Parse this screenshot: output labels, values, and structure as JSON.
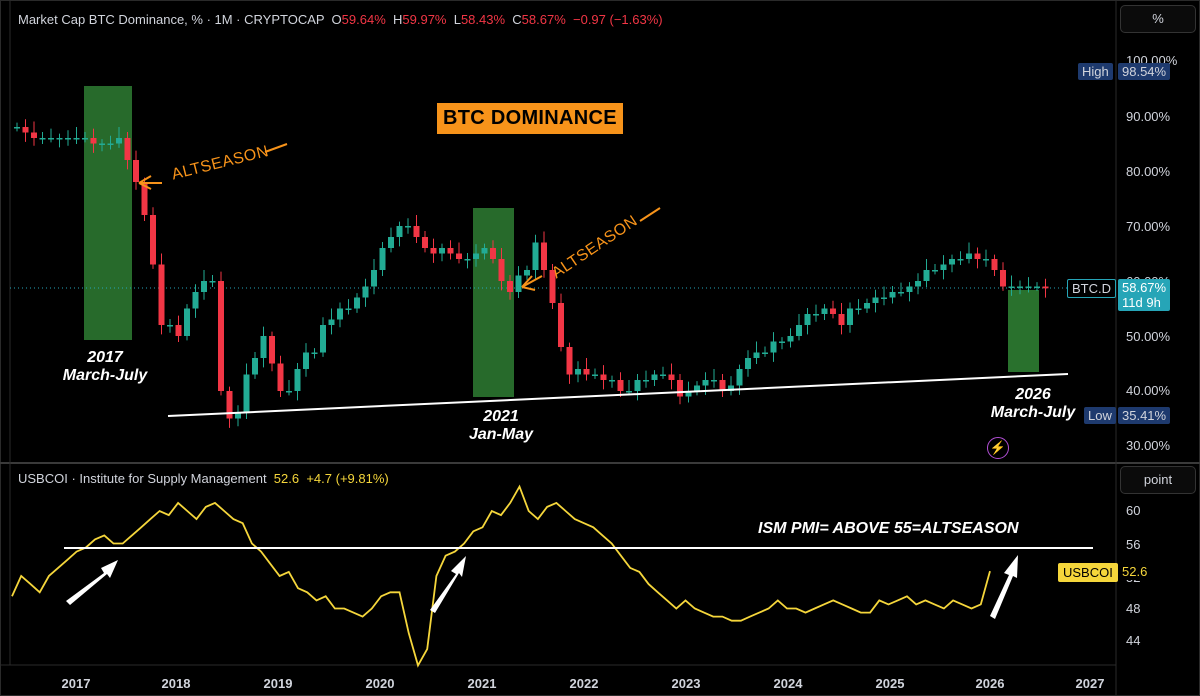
{
  "main_legend": {
    "title": "Market Cap BTC Dominance, % · 1M · CRYPTOCAP",
    "o_label": "O",
    "o_value": "59.64%",
    "h_label": "H",
    "h_value": "59.97%",
    "l_label": "L",
    "l_value": "58.43%",
    "c_label": "C",
    "c_value": "58.67%",
    "change": "−0.97 (−1.63%)"
  },
  "ism_legend": {
    "title": "USBCOI · Institute for Supply Management",
    "value": "52.6",
    "change": "+4.7 (+9.81%)"
  },
  "top_axis": {
    "unit_button": "%",
    "ticks": [
      "100.00%",
      "90.00%",
      "80.00%",
      "70.00%",
      "60.00%",
      "50.00%",
      "40.00%",
      "30.00%"
    ],
    "high_label": "High",
    "high_value": "98.54%",
    "low_label": "Low",
    "low_value": "35.41%",
    "symbol_label": "BTC.D",
    "symbol_value": "58.67%",
    "countdown": "11d 9h"
  },
  "bottom_axis": {
    "unit_button": "point",
    "ticks": [
      "60",
      "56",
      "52",
      "48",
      "44"
    ],
    "symbol_label": "USBCOI",
    "symbol_value": "52.6"
  },
  "x_axis": {
    "years": [
      "2017",
      "2018",
      "2019",
      "2020",
      "2021",
      "2022",
      "2023",
      "2024",
      "2025",
      "2026",
      "2027"
    ]
  },
  "annotations": {
    "title": "BTC DOMINANCE",
    "altseason_1": "ALTSEASON",
    "altseason_2": "ALTSEASON",
    "p2017_year": "2017",
    "p2017_months": "March-July",
    "p2021_year": "2021",
    "p2021_months": "Jan-May",
    "p2026_year": "2026",
    "p2026_months": "March-July",
    "ism_note": "ISM PMI= ABOVE 55=ALTSEASON"
  },
  "colors": {
    "up": "#22ab94",
    "down": "#f23645",
    "ism_line": "#f5d63b",
    "highlight": "#2e7d32",
    "accent_orange": "#f7931a",
    "axis_high_bg": "#1e3a6e",
    "btc_tag_bg": "#26a5b7"
  },
  "chart_data": [
    {
      "type": "candlestick",
      "title": "Market Cap BTC Dominance, % · 1M · CRYPTOCAP",
      "ylim": [
        30,
        100
      ],
      "y_ticks": [
        "100.00%",
        "90.00%",
        "80.00%",
        "70.00%",
        "60.00%",
        "50.00%",
        "40.00%",
        "30.00%"
      ],
      "x_ticks": [
        "2017",
        "2018",
        "2019",
        "2020",
        "2021",
        "2022",
        "2023",
        "2024",
        "2025",
        "2026",
        "2027"
      ],
      "last_close": 58.67,
      "high": 98.54,
      "low": 35.41
    },
    {
      "type": "line",
      "title": "USBCOI · Institute for Supply Management",
      "ylim": [
        42,
        64
      ],
      "y_ticks": [
        "60",
        "56",
        "52",
        "48",
        "44"
      ],
      "x_ticks": [
        "2017",
        "2018",
        "2019",
        "2020",
        "2021",
        "2022",
        "2023",
        "2024",
        "2025",
        "2026",
        "2027"
      ],
      "last_value": 52.6,
      "reference_level": 55
    }
  ]
}
